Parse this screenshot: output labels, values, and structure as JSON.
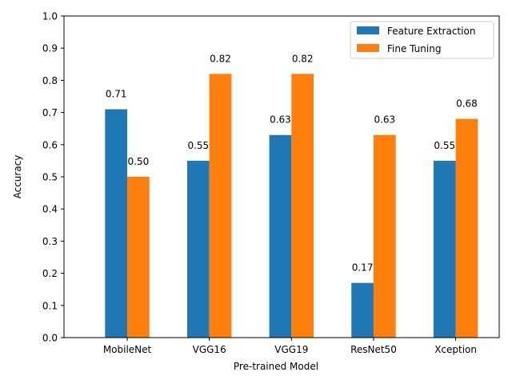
{
  "chart_data": {
    "type": "bar",
    "title": "",
    "xlabel": "Pre-trained Model",
    "ylabel": "Accuracy",
    "ylim": [
      0,
      1.0
    ],
    "yticks": [
      "0.0",
      "0.1",
      "0.2",
      "0.3",
      "0.4",
      "0.5",
      "0.6",
      "0.7",
      "0.8",
      "0.9",
      "1.0"
    ],
    "categories": [
      "MobileNet",
      "VGG16",
      "VGG19",
      "ResNet50",
      "Xception"
    ],
    "series": [
      {
        "name": "Feature Extraction",
        "color": "#1f77b4",
        "values": [
          0.71,
          0.55,
          0.63,
          0.17,
          0.55
        ],
        "labels": [
          "0.71",
          "0.55",
          "0.63",
          "0.17",
          "0.55"
        ]
      },
      {
        "name": "Fine Tuning",
        "color": "#ff7f0e",
        "values": [
          0.5,
          0.82,
          0.82,
          0.63,
          0.68
        ],
        "labels": [
          "0.50",
          "0.82",
          "0.82",
          "0.63",
          "0.68"
        ]
      }
    ],
    "legend": "top-right",
    "grid": false
  }
}
